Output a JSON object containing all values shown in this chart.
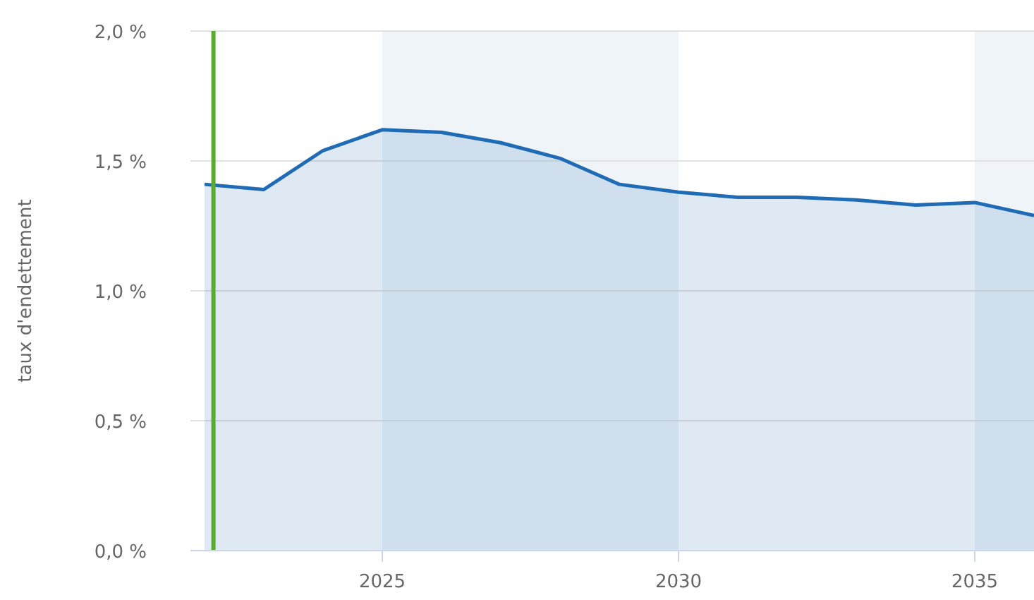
{
  "chart_data": {
    "type": "area",
    "ylabel": "taux d'endettement",
    "x": [
      2022,
      2023,
      2024,
      2025,
      2026,
      2027,
      2028,
      2029,
      2030,
      2031,
      2032,
      2033,
      2034,
      2035,
      2036
    ],
    "series": [
      {
        "color": "#1f6bb5",
        "values": [
          1.41,
          1.39,
          1.54,
          1.62,
          1.61,
          1.57,
          1.51,
          1.41,
          1.38,
          1.36,
          1.36,
          1.35,
          1.33,
          1.34,
          1.29
        ]
      }
    ],
    "xlim": [
      2022,
      2036
    ],
    "xticks": [
      2025,
      2030,
      2035
    ],
    "ylim": [
      0,
      2
    ],
    "yticks": [
      {
        "value": 0,
        "label": "0,0 %"
      },
      {
        "value": 0.5,
        "label": "0,5 %"
      },
      {
        "value": 1,
        "label": "1,0 %"
      },
      {
        "value": 1.5,
        "label": "1,5 %"
      },
      {
        "value": 2,
        "label": "2,0 %"
      }
    ],
    "grid": "y",
    "bands": [
      {
        "axis": "x",
        "from": 2025,
        "to": 2030,
        "color": "#eef4f8"
      },
      {
        "axis": "x",
        "from": 2035,
        "to": 2036,
        "color": "#eef4f8"
      }
    ],
    "ref_lines": [
      {
        "axis": "x",
        "value": 2022.15,
        "color": "#5aaa32"
      }
    ]
  }
}
